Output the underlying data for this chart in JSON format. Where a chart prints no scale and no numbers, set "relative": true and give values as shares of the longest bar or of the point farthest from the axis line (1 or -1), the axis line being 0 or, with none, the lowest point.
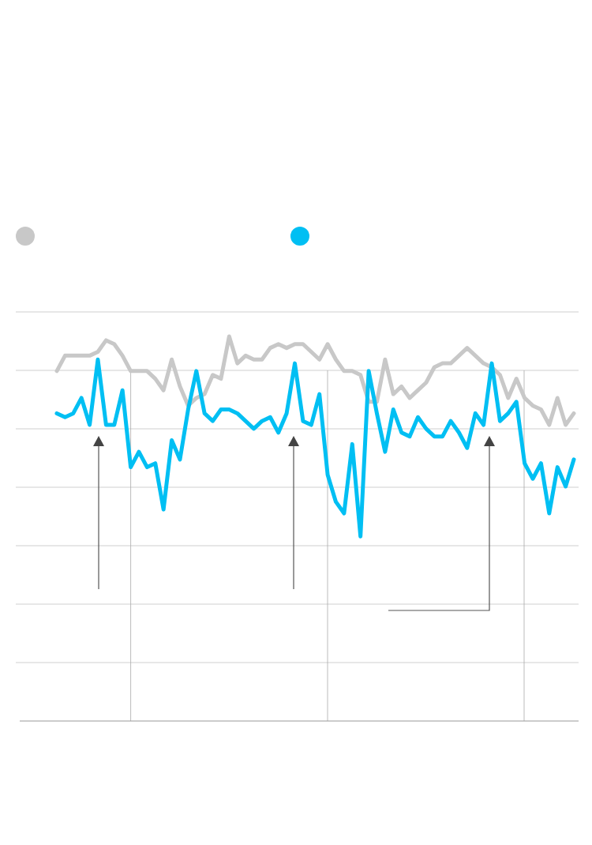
{
  "chart_data": {
    "type": "line",
    "relative": true,
    "categories": [
      null,
      null,
      null,
      null,
      null,
      null,
      null,
      null,
      null,
      null,
      null,
      null,
      null,
      null,
      null,
      null,
      null,
      null,
      null,
      null,
      null,
      null,
      null,
      null,
      null,
      null,
      null,
      null,
      null,
      null,
      null,
      null,
      null,
      null,
      null,
      null,
      null,
      null,
      null,
      null,
      null,
      null,
      null,
      null,
      null,
      null,
      null,
      null,
      null,
      null,
      null,
      null,
      null,
      null,
      null,
      null,
      null,
      null,
      null,
      null,
      null,
      null,
      null,
      null
    ],
    "grid": true,
    "marker": "none",
    "line_style": "solid",
    "series": [
      {
        "color": "#c8c8c8",
        "values": [
          0.91,
          0.95,
          0.95,
          0.95,
          0.95,
          0.96,
          0.99,
          0.98,
          0.95,
          0.91,
          0.91,
          0.91,
          0.89,
          0.86,
          0.94,
          0.87,
          0.82,
          0.84,
          0.85,
          0.9,
          0.89,
          1,
          0.93,
          0.95,
          0.94,
          0.94,
          0.97,
          0.98,
          0.97,
          0.98,
          0.98,
          0.96,
          0.94,
          0.98,
          0.94,
          0.91,
          0.91,
          0.9,
          0.83,
          0.83,
          0.94,
          0.85,
          0.87,
          0.84,
          0.86,
          0.88,
          0.92,
          0.93,
          0.93,
          0.95,
          0.97,
          0.95,
          0.93,
          0.92,
          0.9,
          0.84,
          0.89,
          0.84,
          0.82,
          0.81,
          0.77,
          0.84,
          0.77,
          0.8
        ]
      },
      {
        "color": "#00bff3",
        "values": [
          0.8,
          0.79,
          0.8,
          0.84,
          0.77,
          0.94,
          0.77,
          0.77,
          0.86,
          0.66,
          0.7,
          0.66,
          0.67,
          0.55,
          0.73,
          0.68,
          0.81,
          0.91,
          0.8,
          0.78,
          0.81,
          0.81,
          0.8,
          0.78,
          0.76,
          0.78,
          0.79,
          0.75,
          0.8,
          0.93,
          0.78,
          0.77,
          0.85,
          0.64,
          0.57,
          0.54,
          0.72,
          0.48,
          0.91,
          0.8,
          0.7,
          0.81,
          0.75,
          0.74,
          0.79,
          0.76,
          0.74,
          0.74,
          0.78,
          0.75,
          0.71,
          0.8,
          0.77,
          0.93,
          0.78,
          0.8,
          0.83,
          0.67,
          0.63,
          0.67,
          0.54,
          0.66,
          0.61,
          0.68
        ]
      }
    ]
  }
}
